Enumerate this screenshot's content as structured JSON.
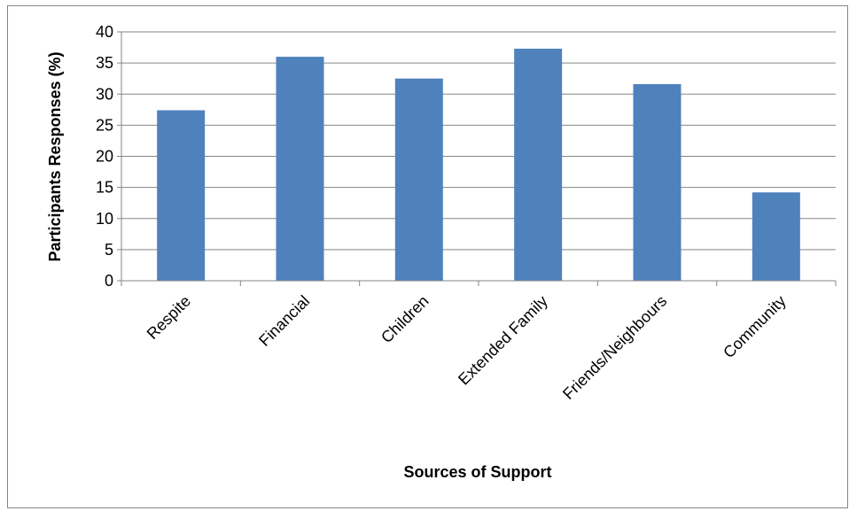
{
  "chart_data": {
    "type": "bar",
    "title": "",
    "xlabel": "Sources of Support",
    "ylabel": "Participants Responses (%)",
    "categories": [
      "Respite",
      "Financial",
      "Children",
      "Extended Family",
      "Friends/Neighbours",
      "Community"
    ],
    "values": [
      27.4,
      36.0,
      32.5,
      37.3,
      31.6,
      14.2
    ],
    "ylim": [
      0,
      40
    ],
    "yticks": [
      0,
      5,
      10,
      15,
      20,
      25,
      30,
      35,
      40
    ],
    "grid": true,
    "legend": "none",
    "bar_color": "#4f81bd",
    "gridline_color": "#868686"
  }
}
